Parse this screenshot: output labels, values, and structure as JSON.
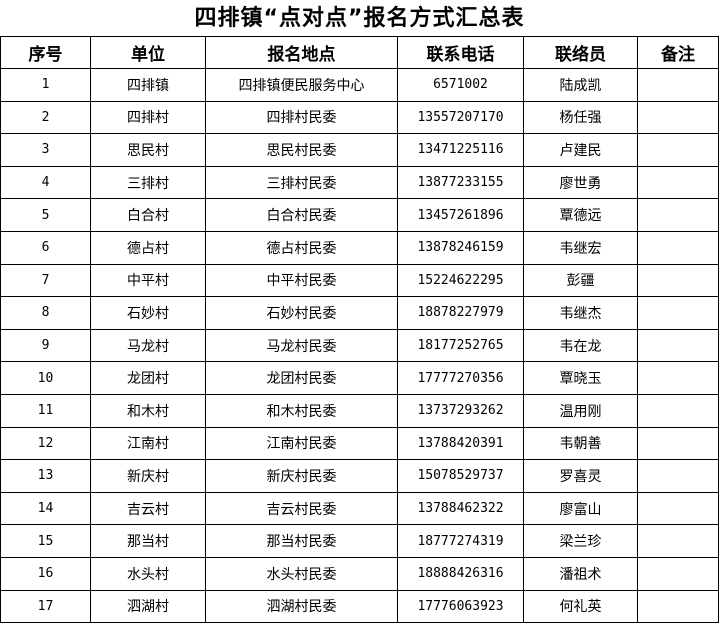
{
  "title": "四排镇“点对点”报名方式汇总表",
  "headers": [
    "序号",
    "单位",
    "报名地点",
    "联系电话",
    "联络员",
    "备注"
  ],
  "rows": [
    [
      "1",
      "四排镇",
      "四排镇便民服务中心",
      "6571002",
      "陆成凯",
      ""
    ],
    [
      "2",
      "四排村",
      "四排村民委",
      "13557207170",
      "杨任强",
      ""
    ],
    [
      "3",
      "思民村",
      "思民村民委",
      "13471225116",
      "卢建民",
      ""
    ],
    [
      "4",
      "三排村",
      "三排村民委",
      "13877233155",
      "廖世勇",
      ""
    ],
    [
      "5",
      "白合村",
      "白合村民委",
      "13457261896",
      "覃德远",
      ""
    ],
    [
      "6",
      "德占村",
      "德占村民委",
      "13878246159",
      "韦继宏",
      ""
    ],
    [
      "7",
      "中平村",
      "中平村民委",
      "15224622295",
      "彭疆",
      ""
    ],
    [
      "8",
      "石妙村",
      "石妙村民委",
      "18878227979",
      "韦继杰",
      ""
    ],
    [
      "9",
      "马龙村",
      "马龙村民委",
      "18177252765",
      "韦在龙",
      ""
    ],
    [
      "10",
      "龙团村",
      "龙团村民委",
      "17777270356",
      "覃晓玉",
      ""
    ],
    [
      "11",
      "和木村",
      "和木村民委",
      "13737293262",
      "温用刚",
      ""
    ],
    [
      "12",
      "江南村",
      "江南村民委",
      "13788420391",
      "韦朝善",
      ""
    ],
    [
      "13",
      "新庆村",
      "新庆村民委",
      "15078529737",
      "罗喜灵",
      ""
    ],
    [
      "14",
      "吉云村",
      "吉云村民委",
      "13788462322",
      "廖富山",
      ""
    ],
    [
      "15",
      "那当村",
      "那当村民委",
      "18777274319",
      "梁兰珍",
      ""
    ],
    [
      "16",
      "水头村",
      "水头村民委",
      "18888426316",
      "潘祖术",
      ""
    ],
    [
      "17",
      "泗湖村",
      "泗湖村民委",
      "17776063923",
      "何礼英",
      ""
    ]
  ]
}
